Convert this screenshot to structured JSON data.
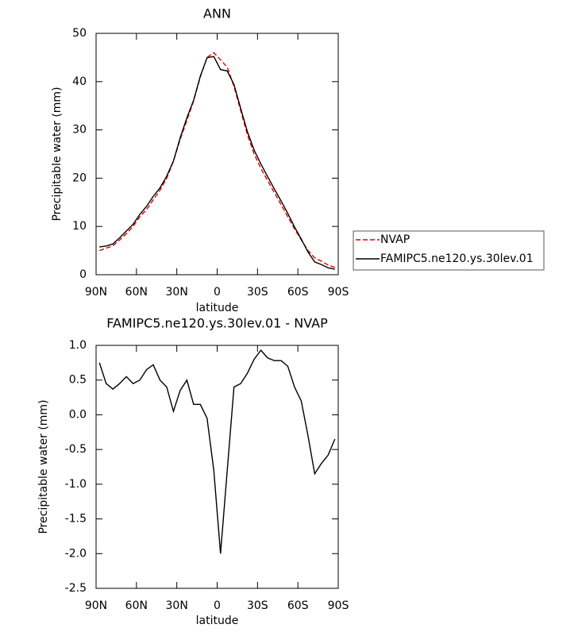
{
  "chart_data": [
    {
      "type": "line",
      "title": "ANN",
      "xlabel": "latitude",
      "ylabel": "Precipitable water (mm)",
      "x": [
        87.5,
        82.5,
        77.5,
        72.5,
        67.5,
        62.5,
        57.5,
        52.5,
        47.5,
        42.5,
        37.5,
        32.5,
        27.5,
        22.5,
        17.5,
        12.5,
        7.5,
        2.5,
        -2.5,
        -7.5,
        -12.5,
        -17.5,
        -22.5,
        -27.5,
        -32.5,
        -37.5,
        -42.5,
        -47.5,
        -52.5,
        -57.5,
        -62.5,
        -67.5,
        -72.5,
        -77.5,
        -82.5,
        -87.5
      ],
      "series": [
        {
          "name": "NVAP",
          "color": "#e00000",
          "style": "dashed",
          "values": [
            5.0,
            5.5,
            6.0,
            7.2,
            8.5,
            10.0,
            12.0,
            13.5,
            15.5,
            17.5,
            20.0,
            23.5,
            28,
            32,
            36,
            41,
            45,
            46,
            44.5,
            43,
            39,
            34,
            29,
            25,
            22,
            19.5,
            17,
            14.5,
            12,
            9.5,
            7.2,
            5,
            3.5,
            2.8,
            2.0,
            1.5
          ]
        },
        {
          "name": "FAMIPC5.ne120.ys.30lev.01",
          "color": "#000000",
          "style": "solid",
          "values": [
            5.75,
            5.95,
            6.37,
            7.65,
            9.05,
            10.45,
            12.5,
            14.15,
            16.22,
            18.0,
            20.4,
            23.55,
            28.35,
            32.5,
            36.15,
            41.15,
            44.95,
            45.2,
            42.5,
            42.2,
            39.4,
            34.45,
            29.6,
            25.8,
            22.93,
            20.32,
            17.78,
            15.28,
            12.7,
            9.9,
            7.4,
            4.7,
            2.65,
            2.1,
            1.42,
            1.15
          ]
        }
      ],
      "xlim": [
        90,
        -90
      ],
      "xticks": [
        {
          "value": 90,
          "label": "90N"
        },
        {
          "value": 60,
          "label": "60N"
        },
        {
          "value": 30,
          "label": "30N"
        },
        0,
        {
          "value": -30,
          "label": "30S"
        },
        {
          "value": -60,
          "label": "60S"
        },
        {
          "value": -90,
          "label": "90S"
        }
      ],
      "ylim": [
        0,
        50
      ],
      "yticks": [
        0,
        10,
        20,
        30,
        40,
        50
      ],
      "legend": "right"
    },
    {
      "type": "line",
      "title": "FAMIPC5.ne120.ys.30lev.01 - NVAP",
      "xlabel": "latitude",
      "ylabel": "Precipitable water (mm)",
      "x": [
        87.5,
        82.5,
        77.5,
        72.5,
        67.5,
        62.5,
        57.5,
        52.5,
        47.5,
        42.5,
        37.5,
        32.5,
        27.5,
        22.5,
        17.5,
        12.5,
        7.5,
        2.5,
        -2.5,
        -7.5,
        -12.5,
        -17.5,
        -22.5,
        -27.5,
        -32.5,
        -37.5,
        -42.5,
        -47.5,
        -52.5,
        -57.5,
        -62.5,
        -67.5,
        -72.5,
        -77.5,
        -82.5,
        -87.5
      ],
      "color": "#000000",
      "values": [
        0.75,
        0.45,
        0.37,
        0.45,
        0.55,
        0.45,
        0.5,
        0.65,
        0.72,
        0.5,
        0.4,
        0.05,
        0.35,
        0.5,
        0.15,
        0.15,
        -0.05,
        -0.8,
        -2.0,
        -0.8,
        0.4,
        0.45,
        0.6,
        0.8,
        0.93,
        0.82,
        0.78,
        0.78,
        0.7,
        0.4,
        0.2,
        -0.3,
        -0.85,
        -0.7,
        -0.58,
        -0.35
      ],
      "xlim": [
        90,
        -90
      ],
      "xticks": [
        {
          "value": 90,
          "label": "90N"
        },
        {
          "value": 60,
          "label": "60N"
        },
        {
          "value": 30,
          "label": "30N"
        },
        0,
        {
          "value": -30,
          "label": "30S"
        },
        {
          "value": -60,
          "label": "60S"
        },
        {
          "value": -90,
          "label": "90S"
        }
      ],
      "ylim": [
        -2.5,
        1.0
      ],
      "yticks": [
        {
          "value": -2.5,
          "label": "-2.5"
        },
        {
          "value": -2.0,
          "label": "-2.0"
        },
        -1.5,
        {
          "value": -1.0,
          "label": "-1.0"
        },
        -0.5,
        {
          "value": 0.0,
          "label": "0.0"
        },
        0.5,
        {
          "value": 1.0,
          "label": "1.0"
        }
      ]
    }
  ]
}
